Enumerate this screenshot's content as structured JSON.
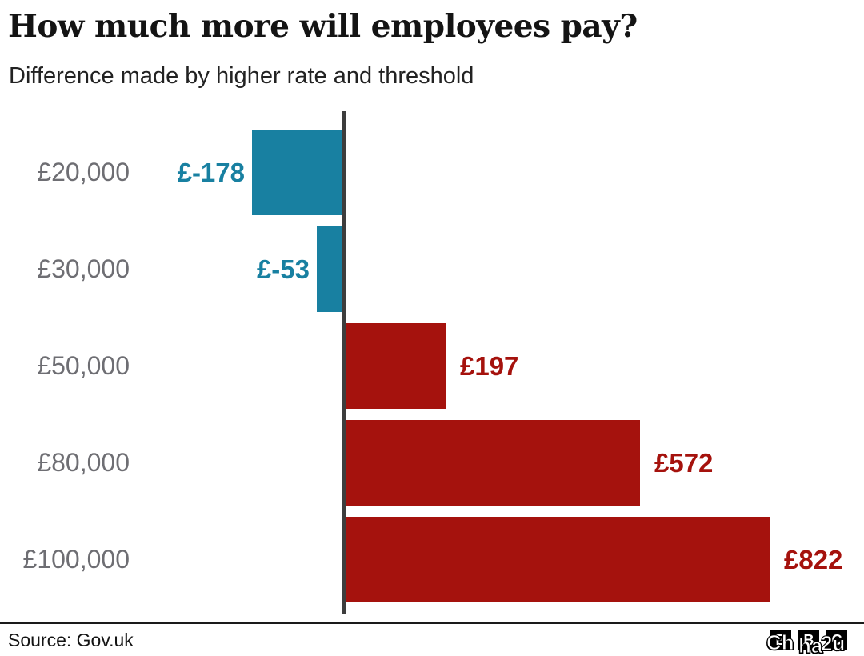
{
  "header": {
    "title": "How much more will employees pay?",
    "subtitle": "Difference made by higher rate and threshold"
  },
  "chart_data": {
    "type": "bar",
    "orientation": "horizontal",
    "title": "How much more will employees pay?",
    "subtitle": "Difference made by higher rate and threshold",
    "categories": [
      "£20,000",
      "£30,000",
      "£50,000",
      "£80,000",
      "£100,000"
    ],
    "values": [
      -178,
      -53,
      197,
      572,
      822
    ],
    "value_labels": [
      "£-178",
      "£-53",
      "£197",
      "£572",
      "£822"
    ],
    "baseline": 0,
    "xlabel": "",
    "ylabel": "",
    "grid": false,
    "legend": false
  },
  "colors": {
    "negative_bar": "#1880A1",
    "positive_bar": "#A5120D",
    "negative_label": "#1880A1",
    "positive_label": "#A5120D",
    "category_label": "#6E6E73",
    "axis_line": "#3D3D3D",
    "title_text": "#141414",
    "divider": "#1A1A1A"
  },
  "footer": {
    "source": "Source: Gov.uk",
    "logo_blocks": [
      "B",
      "B",
      "C"
    ],
    "watermark": [
      "Ch",
      "ha",
      "2u"
    ]
  }
}
